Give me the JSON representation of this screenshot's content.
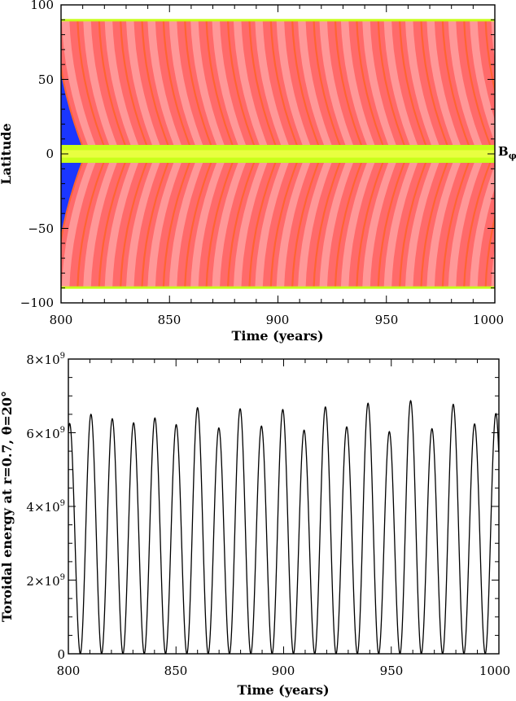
{
  "chart_data": [
    {
      "type": "heatmap",
      "title": "",
      "xlabel": "Time (years)",
      "ylabel": "Latitude",
      "side_label": "B",
      "side_label_sub": "φ",
      "xlim": [
        800,
        1000
      ],
      "ylim": [
        -100,
        100
      ],
      "xticks": [
        "800",
        "850",
        "900",
        "950",
        "1000"
      ],
      "yticks": [
        "100",
        "50",
        "0",
        "−50",
        "−100"
      ],
      "field_extent_lat": [
        -90,
        90
      ],
      "butterfly_start_times": [
        800.8,
        810.7,
        820.6,
        830.5,
        840.4,
        850.3,
        860.2,
        870.1,
        880.0,
        889.9,
        899.8,
        909.7,
        919.6,
        929.5,
        939.4,
        949.3,
        959.2,
        969.1,
        979.0,
        988.9,
        998.8
      ],
      "cycle_period_years": 19.8,
      "colors": {
        "black": "#000000",
        "dark_blue": "#1010cc",
        "blue": "#1a36ff",
        "cyan": "#2aa8e6",
        "equator_green": "#c8ff1a",
        "yellow": "#e8ff40",
        "orange": "#ff6432",
        "red": "#ff5050",
        "salmon": "#ff6a6a",
        "pink": "#ff9898",
        "dark": "#1a1a1a"
      }
    },
    {
      "type": "line",
      "title": "",
      "xlabel": "Time (years)",
      "ylabel": "Toroidal energy at r=0.7, θ=20°",
      "xlim": [
        800,
        1000
      ],
      "ylim": [
        0,
        8000000000
      ],
      "xticks": [
        "800",
        "850",
        "900",
        "950",
        "1000"
      ],
      "yticks": [
        {
          "mantissa": "0",
          "exp": ""
        },
        {
          "mantissa": "2×10",
          "exp": "9"
        },
        {
          "mantissa": "4×10",
          "exp": "9"
        },
        {
          "mantissa": "6×10",
          "exp": "9"
        },
        {
          "mantissa": "8×10",
          "exp": "9"
        }
      ],
      "series": [
        {
          "peaks": [
            {
              "x": 800.6,
              "y": 6250000000
            },
            {
              "x": 810.5,
              "y": 6500000000
            },
            {
              "x": 820.4,
              "y": 6380000000
            },
            {
              "x": 830.3,
              "y": 6270000000
            },
            {
              "x": 840.2,
              "y": 6400000000
            },
            {
              "x": 850.1,
              "y": 6220000000
            },
            {
              "x": 860.0,
              "y": 6680000000
            },
            {
              "x": 869.9,
              "y": 6130000000
            },
            {
              "x": 879.8,
              "y": 6650000000
            },
            {
              "x": 889.7,
              "y": 6180000000
            },
            {
              "x": 899.6,
              "y": 6630000000
            },
            {
              "x": 909.5,
              "y": 6070000000
            },
            {
              "x": 919.4,
              "y": 6700000000
            },
            {
              "x": 929.3,
              "y": 6160000000
            },
            {
              "x": 939.2,
              "y": 6800000000
            },
            {
              "x": 949.1,
              "y": 6030000000
            },
            {
              "x": 959.0,
              "y": 6870000000
            },
            {
              "x": 968.9,
              "y": 6110000000
            },
            {
              "x": 978.8,
              "y": 6770000000
            },
            {
              "x": 988.7,
              "y": 6240000000
            },
            {
              "x": 998.6,
              "y": 6520000000
            }
          ],
          "minima_y": 0
        }
      ]
    }
  ]
}
